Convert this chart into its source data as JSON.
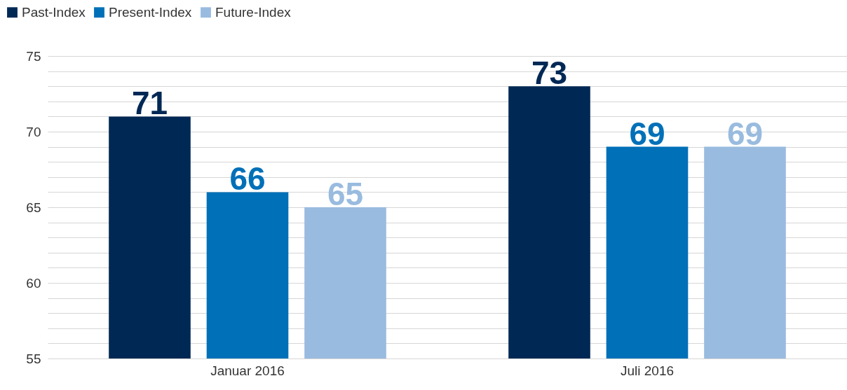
{
  "chart_data": {
    "type": "bar",
    "categories": [
      "Januar 2016",
      "Juli 2016"
    ],
    "series": [
      {
        "name": "Past-Index",
        "color": "#002855",
        "values": [
          71,
          73
        ]
      },
      {
        "name": "Present-Index",
        "color": "#0070b8",
        "values": [
          66,
          69
        ]
      },
      {
        "name": "Future-Index",
        "color": "#99bbdf",
        "values": [
          65,
          69
        ]
      }
    ],
    "ylim": [
      55,
      75
    ],
    "yticks": [
      55,
      {
        "value": 56,
        "label": null
      },
      {
        "value": 57,
        "label": null
      },
      {
        "value": 58,
        "label": null
      },
      {
        "value": 59,
        "label": null
      },
      60,
      {
        "value": 61,
        "label": null
      },
      {
        "value": 62,
        "label": null
      },
      {
        "value": 63,
        "label": null
      },
      {
        "value": 64,
        "label": null
      },
      65,
      {
        "value": 66,
        "label": null
      },
      {
        "value": 67,
        "label": null
      },
      {
        "value": 68,
        "label": null
      },
      {
        "value": 69,
        "label": null
      },
      70,
      {
        "value": 71,
        "label": null
      },
      {
        "value": 72,
        "label": null
      },
      {
        "value": 73,
        "label": null
      },
      {
        "value": 74,
        "label": null
      },
      75
    ],
    "grid": "y",
    "legend": "top left",
    "data_labels": true
  }
}
